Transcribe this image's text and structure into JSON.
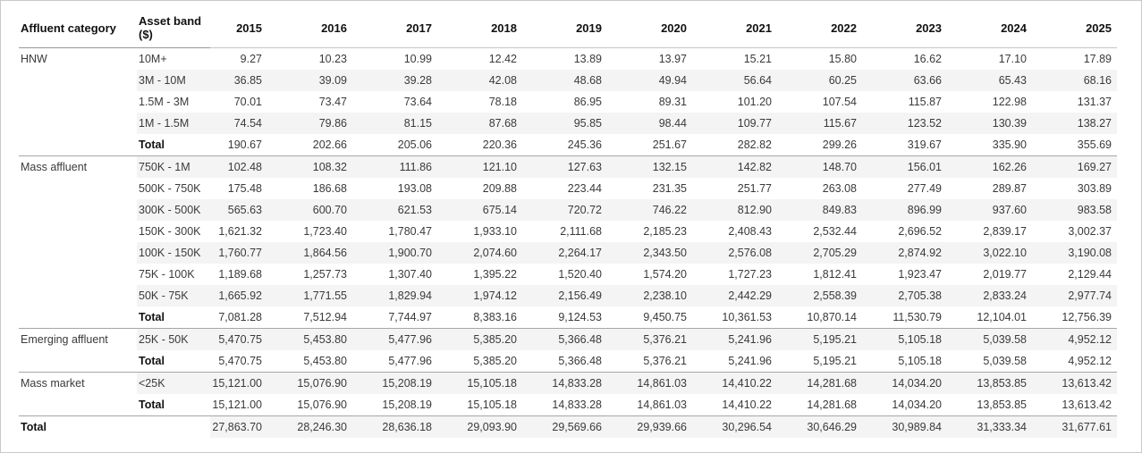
{
  "colors": {
    "stripe": "#f4f4f4",
    "group_line": "#a6a6a6",
    "header_line_left": "#999999",
    "header_line_right": "#c4c4c4",
    "frame": "#c9c9c9",
    "text": "#3a3a3a",
    "header_text": "#111111"
  },
  "chart_data": {
    "type": "table",
    "columns": [
      "Affluent category",
      "Asset band ($)",
      "2015",
      "2016",
      "2017",
      "2018",
      "2019",
      "2020",
      "2021",
      "2022",
      "2023",
      "2024",
      "2025"
    ],
    "groups": [
      {
        "category": "HNW",
        "rows": [
          {
            "band": "10M+",
            "values": [
              "9.27",
              "10.23",
              "10.99",
              "12.42",
              "13.89",
              "13.97",
              "15.21",
              "15.80",
              "16.62",
              "17.10",
              "17.89"
            ]
          },
          {
            "band": "3M - 10M",
            "values": [
              "36.85",
              "39.09",
              "39.28",
              "42.08",
              "48.68",
              "49.94",
              "56.64",
              "60.25",
              "63.66",
              "65.43",
              "68.16"
            ]
          },
          {
            "band": "1.5M - 3M",
            "values": [
              "70.01",
              "73.47",
              "73.64",
              "78.18",
              "86.95",
              "89.31",
              "101.20",
              "107.54",
              "115.87",
              "122.98",
              "131.37"
            ]
          },
          {
            "band": "1M - 1.5M",
            "values": [
              "74.54",
              "79.86",
              "81.15",
              "87.68",
              "95.85",
              "98.44",
              "109.77",
              "115.67",
              "123.52",
              "130.39",
              "138.27"
            ]
          },
          {
            "band": "Total",
            "values": [
              "190.67",
              "202.66",
              "205.06",
              "220.36",
              "245.36",
              "251.67",
              "282.82",
              "299.26",
              "319.67",
              "335.90",
              "355.69"
            ]
          }
        ]
      },
      {
        "category": "Mass affluent",
        "rows": [
          {
            "band": "750K - 1M",
            "values": [
              "102.48",
              "108.32",
              "111.86",
              "121.10",
              "127.63",
              "132.15",
              "142.82",
              "148.70",
              "156.01",
              "162.26",
              "169.27"
            ]
          },
          {
            "band": "500K - 750K",
            "values": [
              "175.48",
              "186.68",
              "193.08",
              "209.88",
              "223.44",
              "231.35",
              "251.77",
              "263.08",
              "277.49",
              "289.87",
              "303.89"
            ]
          },
          {
            "band": "300K - 500K",
            "values": [
              "565.63",
              "600.70",
              "621.53",
              "675.14",
              "720.72",
              "746.22",
              "812.90",
              "849.83",
              "896.99",
              "937.60",
              "983.58"
            ]
          },
          {
            "band": "150K - 300K",
            "values": [
              "1,621.32",
              "1,723.40",
              "1,780.47",
              "1,933.10",
              "2,111.68",
              "2,185.23",
              "2,408.43",
              "2,532.44",
              "2,696.52",
              "2,839.17",
              "3,002.37"
            ]
          },
          {
            "band": "100K - 150K",
            "values": [
              "1,760.77",
              "1,864.56",
              "1,900.70",
              "2,074.60",
              "2,264.17",
              "2,343.50",
              "2,576.08",
              "2,705.29",
              "2,874.92",
              "3,022.10",
              "3,190.08"
            ]
          },
          {
            "band": "75K - 100K",
            "values": [
              "1,189.68",
              "1,257.73",
              "1,307.40",
              "1,395.22",
              "1,520.40",
              "1,574.20",
              "1,727.23",
              "1,812.41",
              "1,923.47",
              "2,019.77",
              "2,129.44"
            ]
          },
          {
            "band": "50K - 75K",
            "values": [
              "1,665.92",
              "1,771.55",
              "1,829.94",
              "1,974.12",
              "2,156.49",
              "2,238.10",
              "2,442.29",
              "2,558.39",
              "2,705.38",
              "2,833.24",
              "2,977.74"
            ]
          },
          {
            "band": "Total",
            "values": [
              "7,081.28",
              "7,512.94",
              "7,744.97",
              "8,383.16",
              "9,124.53",
              "9,450.75",
              "10,361.53",
              "10,870.14",
              "11,530.79",
              "12,104.01",
              "12,756.39"
            ]
          }
        ]
      },
      {
        "category": "Emerging affluent",
        "rows": [
          {
            "band": "25K - 50K",
            "values": [
              "5,470.75",
              "5,453.80",
              "5,477.96",
              "5,385.20",
              "5,366.48",
              "5,376.21",
              "5,241.96",
              "5,195.21",
              "5,105.18",
              "5,039.58",
              "4,952.12"
            ]
          },
          {
            "band": "Total",
            "values": [
              "5,470.75",
              "5,453.80",
              "5,477.96",
              "5,385.20",
              "5,366.48",
              "5,376.21",
              "5,241.96",
              "5,195.21",
              "5,105.18",
              "5,039.58",
              "4,952.12"
            ]
          }
        ]
      },
      {
        "category": "Mass market",
        "rows": [
          {
            "band": "<25K",
            "values": [
              "15,121.00",
              "15,076.90",
              "15,208.19",
              "15,105.18",
              "14,833.28",
              "14,861.03",
              "14,410.22",
              "14,281.68",
              "14,034.20",
              "13,853.85",
              "13,613.42"
            ]
          },
          {
            "band": "Total",
            "values": [
              "15,121.00",
              "15,076.90",
              "15,208.19",
              "15,105.18",
              "14,833.28",
              "14,861.03",
              "14,410.22",
              "14,281.68",
              "14,034.20",
              "13,853.85",
              "13,613.42"
            ]
          }
        ]
      }
    ],
    "grand_total": {
      "label": "Total",
      "values": [
        "27,863.70",
        "28,246.30",
        "28,636.18",
        "29,093.90",
        "29,569.66",
        "29,939.66",
        "30,296.54",
        "30,646.29",
        "30,989.84",
        "31,333.34",
        "31,677.61"
      ]
    }
  }
}
